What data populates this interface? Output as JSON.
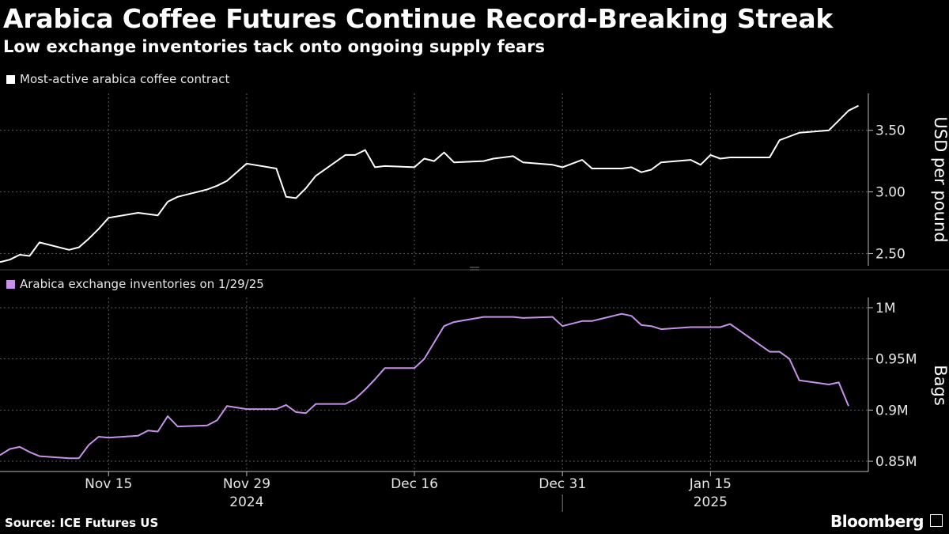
{
  "header": {
    "title": "Arabica Coffee Futures Continue Record-Breaking Streak",
    "subtitle": "Low exchange inventories tack onto ongoing supply fears"
  },
  "footer": {
    "source": "Source: ICE Futures US",
    "brand": "Bloomberg"
  },
  "colors": {
    "background": "#000000",
    "price_line": "#ffffff",
    "inventory_line": "#c792ea",
    "grid": "#5a5a5a"
  },
  "chart_data": [
    {
      "type": "line",
      "panel": "top",
      "legend": "Most-active arabica coffee contract",
      "ylabel": "USD per pound",
      "ylim": [
        2.4,
        3.8
      ],
      "yticks": [
        2.5,
        3.0,
        3.5
      ],
      "ytick_labels": [
        "2.50",
        "3.00",
        "3.50"
      ],
      "x_start": "2024-11-04",
      "x_end": "2025-01-31",
      "series": [
        {
          "name": "Most-active arabica coffee contract",
          "x": [
            "2024-11-04",
            "2024-11-05",
            "2024-11-06",
            "2024-11-07",
            "2024-11-08",
            "2024-11-11",
            "2024-11-12",
            "2024-11-13",
            "2024-11-14",
            "2024-11-15",
            "2024-11-18",
            "2024-11-19",
            "2024-11-20",
            "2024-11-21",
            "2024-11-22",
            "2024-11-25",
            "2024-11-26",
            "2024-11-27",
            "2024-11-29",
            "2024-12-02",
            "2024-12-03",
            "2024-12-04",
            "2024-12-05",
            "2024-12-06",
            "2024-12-09",
            "2024-12-10",
            "2024-12-11",
            "2024-12-12",
            "2024-12-13",
            "2024-12-16",
            "2024-12-17",
            "2024-12-18",
            "2024-12-19",
            "2024-12-20",
            "2024-12-23",
            "2024-12-24",
            "2024-12-26",
            "2024-12-27",
            "2024-12-30",
            "2024-12-31",
            "2025-01-02",
            "2025-01-03",
            "2025-01-06",
            "2025-01-07",
            "2025-01-08",
            "2025-01-09",
            "2025-01-10",
            "2025-01-13",
            "2025-01-14",
            "2025-01-15",
            "2025-01-16",
            "2025-01-17",
            "2025-01-21",
            "2025-01-22",
            "2025-01-23",
            "2025-01-24",
            "2025-01-27",
            "2025-01-28",
            "2025-01-29",
            "2025-01-30"
          ],
          "values": [
            2.43,
            2.45,
            2.49,
            2.48,
            2.59,
            2.53,
            2.55,
            2.62,
            2.7,
            2.79,
            2.83,
            2.82,
            2.81,
            2.92,
            2.96,
            3.02,
            3.05,
            3.09,
            3.23,
            3.19,
            2.96,
            2.95,
            3.03,
            3.13,
            3.3,
            3.3,
            3.34,
            3.2,
            3.21,
            3.2,
            3.27,
            3.25,
            3.32,
            3.24,
            3.25,
            3.27,
            3.29,
            3.24,
            3.22,
            3.2,
            3.26,
            3.19,
            3.19,
            3.2,
            3.16,
            3.18,
            3.24,
            3.26,
            3.22,
            3.3,
            3.27,
            3.28,
            3.28,
            3.42,
            3.45,
            3.48,
            3.5,
            3.58,
            3.66,
            3.7
          ]
        }
      ]
    },
    {
      "type": "line",
      "panel": "bottom",
      "legend": "Arabica exchange inventories on 1/29/25",
      "ylabel": "Bags",
      "ylim": [
        840000,
        1010000
      ],
      "yticks": [
        850000,
        900000,
        950000,
        1000000
      ],
      "ytick_labels": [
        "0.85M",
        "0.9M",
        "0.95M",
        "1M"
      ],
      "x_start": "2024-11-04",
      "x_end": "2025-01-31",
      "series": [
        {
          "name": "Arabica exchange inventories on 1/29/25",
          "x": [
            "2024-11-04",
            "2024-11-05",
            "2024-11-06",
            "2024-11-07",
            "2024-11-08",
            "2024-11-11",
            "2024-11-12",
            "2024-11-13",
            "2024-11-14",
            "2024-11-15",
            "2024-11-18",
            "2024-11-19",
            "2024-11-20",
            "2024-11-21",
            "2024-11-22",
            "2024-11-25",
            "2024-11-26",
            "2024-11-27",
            "2024-11-29",
            "2024-12-02",
            "2024-12-03",
            "2024-12-04",
            "2024-12-05",
            "2024-12-06",
            "2024-12-09",
            "2024-12-10",
            "2024-12-11",
            "2024-12-12",
            "2024-12-13",
            "2024-12-16",
            "2024-12-17",
            "2024-12-18",
            "2024-12-19",
            "2024-12-20",
            "2024-12-23",
            "2024-12-24",
            "2024-12-26",
            "2024-12-27",
            "2024-12-30",
            "2024-12-31",
            "2025-01-02",
            "2025-01-03",
            "2025-01-06",
            "2025-01-07",
            "2025-01-08",
            "2025-01-09",
            "2025-01-10",
            "2025-01-13",
            "2025-01-14",
            "2025-01-15",
            "2025-01-16",
            "2025-01-17",
            "2025-01-21",
            "2025-01-22",
            "2025-01-23",
            "2025-01-24",
            "2025-01-27",
            "2025-01-28",
            "2025-01-29"
          ],
          "values": [
            856000,
            862000,
            864000,
            859000,
            855000,
            853000,
            853000,
            866000,
            874000,
            873000,
            875000,
            880000,
            879000,
            894000,
            884000,
            885000,
            890000,
            904000,
            901000,
            901000,
            905000,
            898000,
            897000,
            906000,
            906000,
            911000,
            920000,
            930000,
            941000,
            941000,
            950000,
            966000,
            982000,
            986000,
            991000,
            991000,
            991000,
            990000,
            991000,
            982000,
            987000,
            987000,
            994000,
            992000,
            983000,
            982000,
            979000,
            981000,
            981000,
            981000,
            981000,
            984000,
            957000,
            957000,
            950000,
            929000,
            925000,
            927000,
            904000
          ]
        }
      ]
    }
  ],
  "x_axis": {
    "ticks": [
      {
        "date": "2024-11-15",
        "label": "Nov 15"
      },
      {
        "date": "2024-11-29",
        "label": "Nov 29"
      },
      {
        "date": "2024-12-16",
        "label": "Dec 16"
      },
      {
        "date": "2024-12-31",
        "label": "Dec 31"
      },
      {
        "date": "2025-01-15",
        "label": "Jan 15"
      }
    ],
    "years": [
      {
        "date": "2024-11-29",
        "label": "2024"
      },
      {
        "date": "2025-01-15",
        "label": "2025"
      }
    ],
    "year_divider_date": "2024-12-31"
  }
}
